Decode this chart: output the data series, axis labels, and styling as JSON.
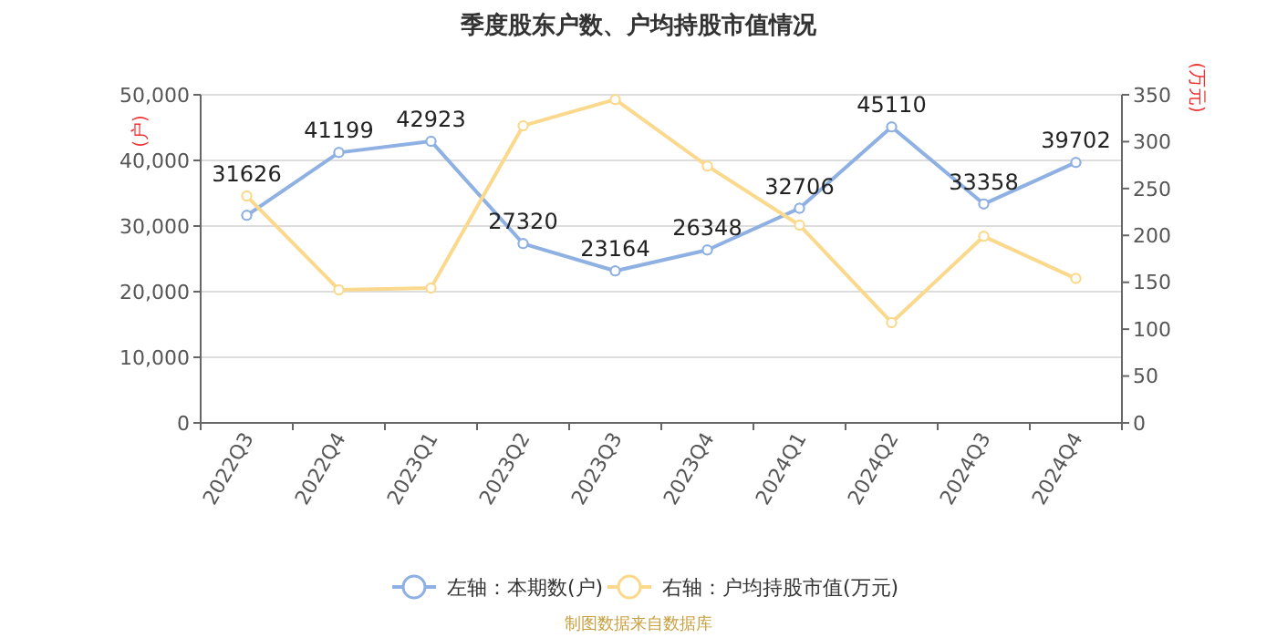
{
  "chart_data": {
    "type": "line",
    "title": "季度股东户数、户均持股市值情况",
    "ylabel": "(户)",
    "y2label": "(万元)",
    "categories": [
      "2022Q3",
      "2022Q4",
      "2023Q1",
      "2023Q2",
      "2023Q3",
      "2023Q4",
      "2024Q1",
      "2024Q2",
      "2024Q3",
      "2024Q4"
    ],
    "series": [
      {
        "name": "左轴：本期数(户)",
        "color": "#8eb0e3",
        "values": [
          31626,
          41199,
          42923,
          27320,
          23164,
          26348,
          32706,
          45110,
          33358,
          39702
        ],
        "data_labels": true
      },
      {
        "name": "右轴：户均持股市值(万元)",
        "color": "#fbd98c",
        "axis": "y2",
        "values": [
          242,
          142,
          144,
          317,
          345,
          274,
          211,
          107,
          199,
          154
        ]
      }
    ],
    "ylim": [
      0,
      50000
    ],
    "yticks": [
      {
        "value": 0,
        "label": "0"
      },
      {
        "value": 10000,
        "label": "10,000"
      },
      {
        "value": 20000,
        "label": "20,000"
      },
      {
        "value": 30000,
        "label": "30,000"
      },
      {
        "value": 40000,
        "label": "40,000"
      },
      {
        "value": 50000,
        "label": "50,000"
      }
    ],
    "y2lim": [
      0,
      350
    ],
    "y2ticks": [
      0,
      50,
      100,
      150,
      200,
      250,
      300,
      350
    ],
    "grid": "y",
    "marker": "circle",
    "legend": "bottom",
    "annotations": [
      "制图数据来自数据库"
    ]
  }
}
